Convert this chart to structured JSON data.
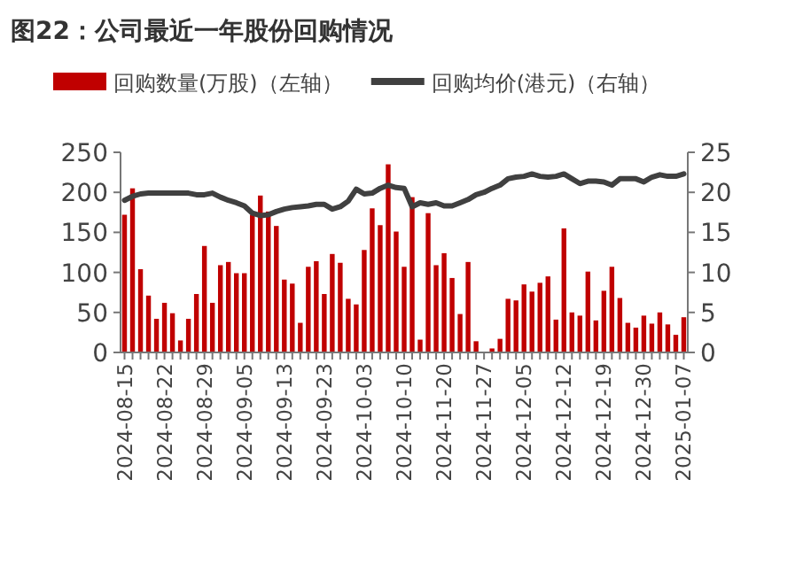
{
  "chart_data": {
    "type": "bar",
    "title": "图22：公司最近一年股份回购情况",
    "categories": [
      "2024-08-15",
      null,
      null,
      null,
      null,
      "2024-08-22",
      null,
      null,
      null,
      null,
      "2024-08-29",
      null,
      null,
      null,
      null,
      "2024-09-05",
      null,
      null,
      null,
      null,
      "2024-09-13",
      null,
      null,
      null,
      null,
      "2024-09-23",
      null,
      null,
      null,
      null,
      "2024-10-03",
      null,
      null,
      null,
      null,
      "2024-10-10",
      null,
      null,
      null,
      null,
      "2024-11-20",
      null,
      null,
      null,
      null,
      "2024-11-27",
      null,
      null,
      null,
      null,
      "2024-12-05",
      null,
      null,
      null,
      null,
      "2024-12-12",
      null,
      null,
      null,
      null,
      "2024-12-19",
      null,
      null,
      null,
      null,
      "2024-12-30",
      null,
      null,
      null,
      null,
      "2025-01-07"
    ],
    "series": [
      {
        "name": "回购数量(万股)（左轴）",
        "type": "bar",
        "color": "#c00000",
        "values": [
          172,
          205,
          104,
          71,
          42,
          62,
          49,
          15,
          42,
          73,
          133,
          62,
          109,
          113,
          99,
          99,
          172,
          196,
          176,
          158,
          91,
          86,
          37,
          107,
          114,
          73,
          123,
          112,
          67,
          60,
          128,
          180,
          159,
          235,
          151,
          107,
          194,
          16,
          174,
          109,
          124,
          93,
          48,
          113,
          14,
          null,
          5,
          17,
          67,
          65,
          85,
          76,
          87,
          95,
          41,
          155,
          50,
          46,
          101,
          40,
          77,
          107,
          68,
          37,
          31,
          46,
          36,
          50,
          35,
          22,
          44
        ]
      },
      {
        "name": "回购均价(港元)（右轴）",
        "type": "line",
        "axis": "y2",
        "color": "#404040",
        "values": [
          19.0,
          19.5,
          19.8,
          19.9,
          19.9,
          19.9,
          19.9,
          19.9,
          19.9,
          19.7,
          19.7,
          19.9,
          19.4,
          19.0,
          18.7,
          18.3,
          17.4,
          17.1,
          17.2,
          17.6,
          17.9,
          18.1,
          18.2,
          18.3,
          18.5,
          18.5,
          17.9,
          18.2,
          18.9,
          20.4,
          19.8,
          19.9,
          20.5,
          20.9,
          20.6,
          20.5,
          18.2,
          18.7,
          18.5,
          18.7,
          18.3,
          18.3,
          18.7,
          19.1,
          19.7,
          20.0,
          20.5,
          20.9,
          21.7,
          21.9,
          22.0,
          22.3,
          22.0,
          21.9,
          22.0,
          22.3,
          21.7,
          21.1,
          21.4,
          21.4,
          21.3,
          20.9,
          21.7,
          21.7,
          21.7,
          21.3,
          21.9,
          22.2,
          22.0,
          22.0,
          22.3
        ]
      }
    ],
    "ylim": [
      0,
      250
    ],
    "yticks": [
      0,
      50,
      100,
      150,
      200,
      250
    ],
    "y2lim": [
      0,
      25
    ],
    "y2ticks": [
      0,
      5,
      10,
      15,
      20,
      25
    ],
    "legend": "top",
    "grid": false
  }
}
